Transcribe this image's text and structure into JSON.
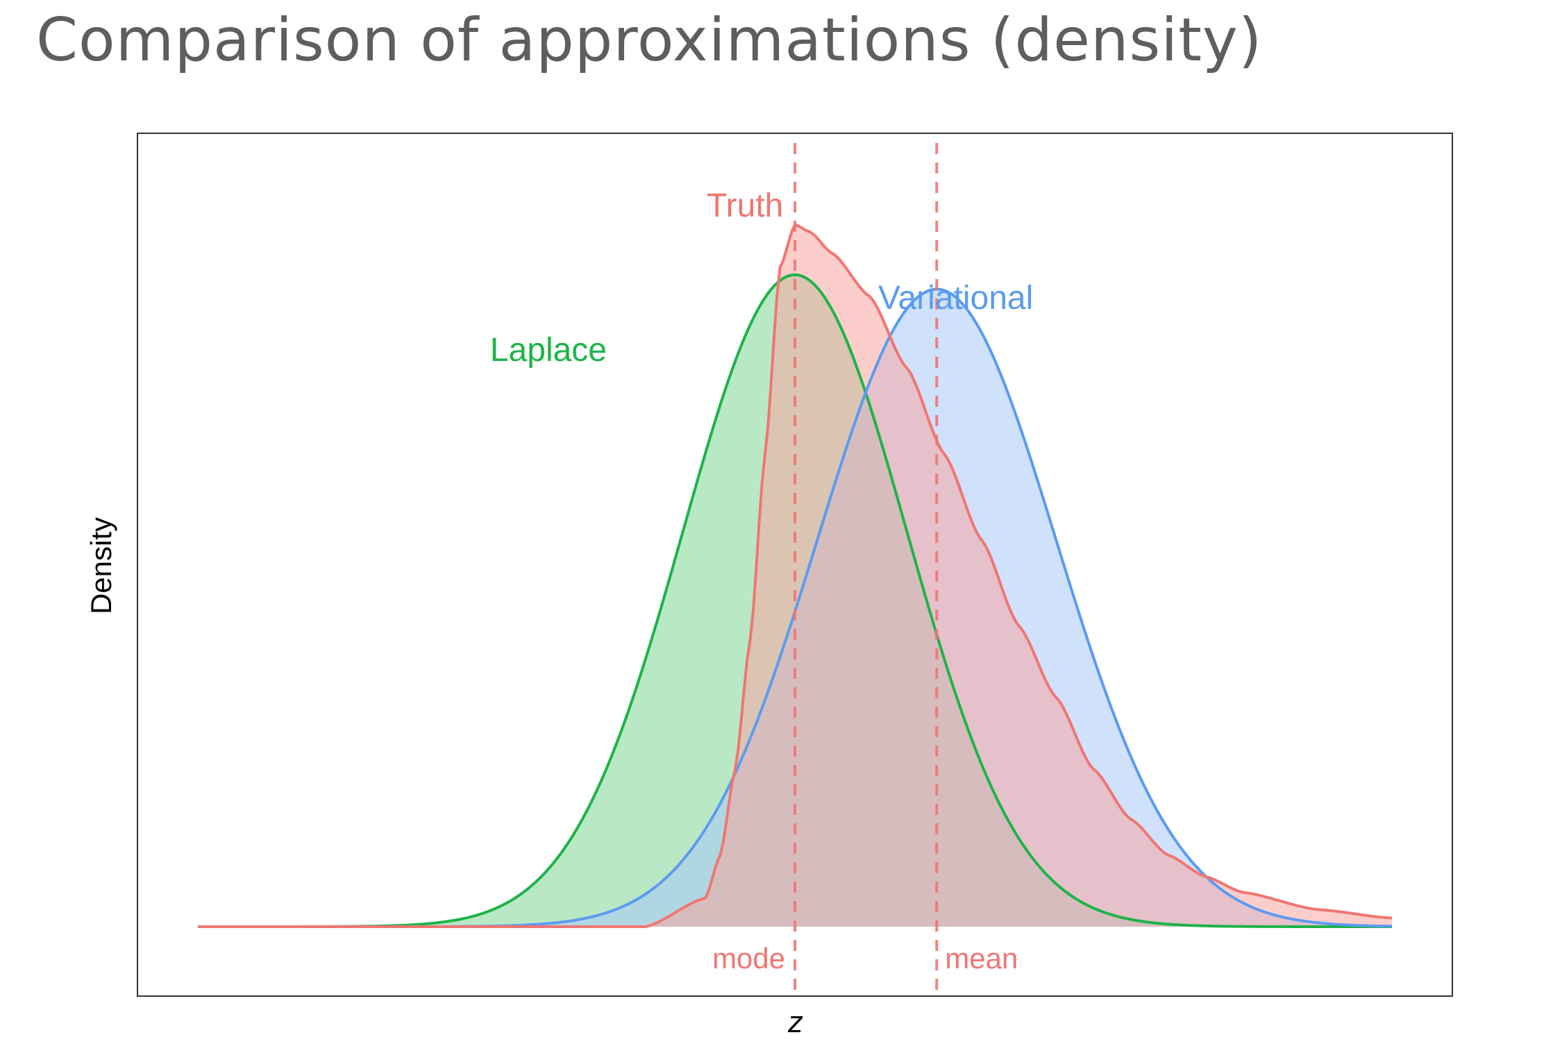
{
  "title": "Comparison of approximations (density)",
  "chart_data": {
    "type": "area",
    "xlabel": "z",
    "ylabel": "Density",
    "x_range": [
      -4,
      4
    ],
    "y_range": [
      0,
      0.55
    ],
    "axis_ticks_shown": false,
    "grid": false,
    "legend": "none",
    "series": [
      {
        "name": "Truth",
        "color": "#f07672",
        "fill": "#f8a5a3",
        "x": [
          -4,
          -1.0,
          -0.6,
          -0.5,
          -0.4,
          -0.3,
          -0.2,
          -0.1,
          0.0,
          0.1,
          0.25,
          0.5,
          0.75,
          1.0,
          1.25,
          1.5,
          1.75,
          2.0,
          2.25,
          2.5,
          2.75,
          3.0,
          3.5,
          4.0
        ],
        "y": [
          0.0,
          0.0,
          0.02,
          0.05,
          0.11,
          0.2,
          0.33,
          0.46,
          0.49,
          0.485,
          0.47,
          0.44,
          0.39,
          0.33,
          0.27,
          0.21,
          0.16,
          0.11,
          0.075,
          0.05,
          0.035,
          0.024,
          0.012,
          0.006
        ]
      },
      {
        "name": "Laplace",
        "color": "#1db447",
        "fill": "#7fd595",
        "mode": 0.0,
        "peak": 0.455,
        "sd": 0.75,
        "distribution": "normal"
      },
      {
        "name": "Variational",
        "color": "#5b9bf0",
        "fill": "#a9c8f7",
        "mean": 0.95,
        "peak": 0.445,
        "sd": 0.8,
        "distribution": "normal"
      }
    ],
    "reference_lines": [
      {
        "label": "mode",
        "x": 0.0,
        "color": "#f07672",
        "style": "dashed"
      },
      {
        "label": "mean",
        "x": 0.95,
        "color": "#f07672",
        "style": "dashed"
      }
    ]
  }
}
